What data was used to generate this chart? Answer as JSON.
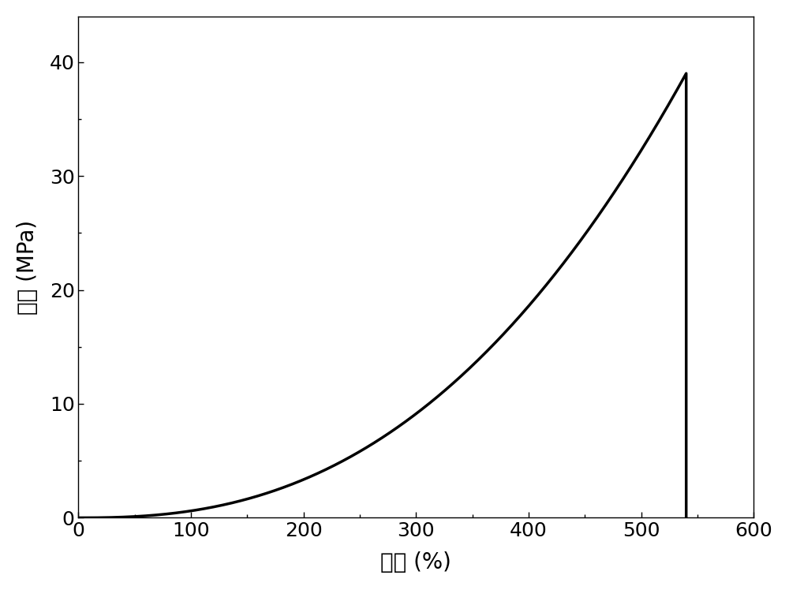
{
  "title": "",
  "xlabel": "应变 (%)",
  "ylabel": "应力 (MPa)",
  "xlim": [
    0,
    600
  ],
  "ylim": [
    0,
    44
  ],
  "xticks": [
    0,
    100,
    200,
    300,
    400,
    500,
    600
  ],
  "yticks": [
    0,
    10,
    20,
    30,
    40
  ],
  "line_color": "#000000",
  "line_width": 2.5,
  "background_color": "#ffffff",
  "peak_strain": 540,
  "peak_stress": 39.0,
  "power_exponent": 2.47,
  "xlabel_fontsize": 20,
  "ylabel_fontsize": 20,
  "tick_fontsize": 18
}
